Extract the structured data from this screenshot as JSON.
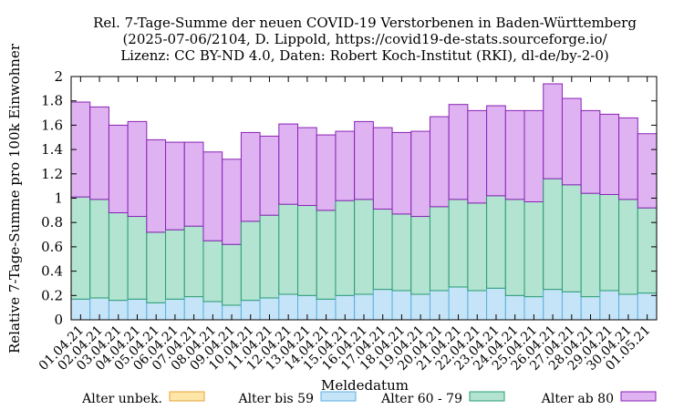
{
  "chart_data": {
    "type": "bar",
    "stacked": true,
    "title_lines": [
      "Rel. 7-Tage-Summe der neuen COVID-19 Verstorbenen in Baden-Württemberg",
      "(2025-07-06/2104, D. Lippold, https://covid19-de-stats.sourceforge.io/",
      "Lizenz: CC BY-ND 4.0, Daten: Robert Koch-Institut (RKI), dl-de/by-2-0)"
    ],
    "xlabel": "Meldedatum",
    "ylabel": "Relative 7-Tage-Summe pro 100k Einwohner",
    "ylim": [
      0,
      2
    ],
    "yticks": [
      "0",
      "0.2",
      "0.4",
      "0.6",
      "0.8",
      "1",
      "1.2",
      "1.4",
      "1.6",
      "1.8",
      "2"
    ],
    "grid": false,
    "legend_position": "bottom",
    "categories": [
      "01.04.21",
      "02.04.21",
      "03.04.21",
      "04.04.21",
      "05.04.21",
      "06.04.21",
      "07.04.21",
      "08.04.21",
      "09.04.21",
      "10.04.21",
      "11.04.21",
      "12.04.21",
      "13.04.21",
      "14.04.21",
      "15.04.21",
      "16.04.21",
      "17.04.21",
      "18.04.21",
      "19.04.21",
      "20.04.21",
      "21.04.21",
      "22.04.21",
      "23.04.21",
      "24.04.21",
      "25.04.21",
      "26.04.21",
      "27.04.21",
      "28.04.21",
      "29.04.21",
      "30.04.21",
      "01.05.21"
    ],
    "series": [
      {
        "name": "Alter unbek.",
        "fill": "#fde6a8",
        "stroke": "#e8a33a",
        "values": [
          0,
          0,
          0,
          0,
          0,
          0,
          0,
          0,
          0,
          0,
          0,
          0,
          0,
          0,
          0,
          0,
          0,
          0,
          0,
          0,
          0,
          0,
          0,
          0,
          0,
          0,
          0,
          0,
          0,
          0,
          0
        ]
      },
      {
        "name": "Alter bis 59",
        "fill": "#c6e4f7",
        "stroke": "#5aafe0",
        "values": [
          0.17,
          0.18,
          0.16,
          0.17,
          0.14,
          0.17,
          0.19,
          0.15,
          0.12,
          0.16,
          0.18,
          0.21,
          0.2,
          0.17,
          0.2,
          0.21,
          0.25,
          0.24,
          0.21,
          0.24,
          0.27,
          0.24,
          0.26,
          0.2,
          0.19,
          0.25,
          0.23,
          0.19,
          0.24,
          0.21,
          0.22
        ]
      },
      {
        "name": "Alter 60 - 79",
        "fill": "#b3e3d1",
        "stroke": "#2a9d72",
        "values": [
          0.84,
          0.81,
          0.72,
          0.68,
          0.58,
          0.57,
          0.58,
          0.5,
          0.5,
          0.65,
          0.68,
          0.74,
          0.74,
          0.73,
          0.78,
          0.78,
          0.66,
          0.63,
          0.64,
          0.69,
          0.72,
          0.72,
          0.76,
          0.79,
          0.78,
          0.91,
          0.88,
          0.85,
          0.79,
          0.78,
          0.7
        ]
      },
      {
        "name": "Alter ab 80",
        "fill": "#dfb3f2",
        "stroke": "#8a22b5",
        "values": [
          0.78,
          0.76,
          0.72,
          0.78,
          0.76,
          0.72,
          0.69,
          0.73,
          0.7,
          0.73,
          0.65,
          0.66,
          0.64,
          0.62,
          0.57,
          0.64,
          0.67,
          0.67,
          0.7,
          0.74,
          0.78,
          0.76,
          0.74,
          0.73,
          0.75,
          0.78,
          0.71,
          0.68,
          0.66,
          0.67,
          0.61
        ]
      }
    ]
  }
}
